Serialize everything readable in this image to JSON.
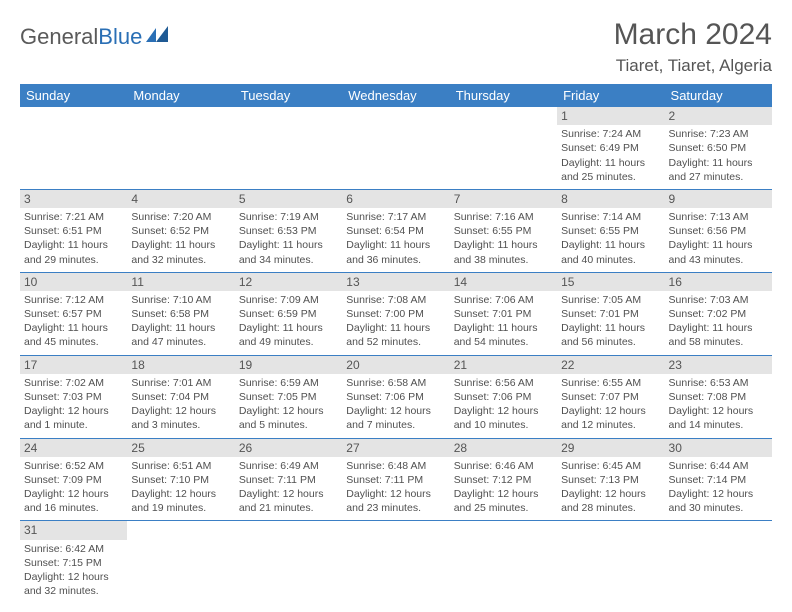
{
  "logo": {
    "text1": "General",
    "text2": "Blue"
  },
  "title": "March 2024",
  "location": "Tiaret, Tiaret, Algeria",
  "colors": {
    "header_bg": "#3b7fc4",
    "header_fg": "#ffffff",
    "daynum_bg": "#e4e4e4",
    "row_divider": "#3b7fc4",
    "text": "#505050",
    "logo_blue": "#2a6fb5"
  },
  "days": [
    "Sunday",
    "Monday",
    "Tuesday",
    "Wednesday",
    "Thursday",
    "Friday",
    "Saturday"
  ],
  "weeks": [
    [
      null,
      null,
      null,
      null,
      null,
      {
        "n": "1",
        "sr": "Sunrise: 7:24 AM",
        "ss": "Sunset: 6:49 PM",
        "dl1": "Daylight: 11 hours",
        "dl2": "and 25 minutes."
      },
      {
        "n": "2",
        "sr": "Sunrise: 7:23 AM",
        "ss": "Sunset: 6:50 PM",
        "dl1": "Daylight: 11 hours",
        "dl2": "and 27 minutes."
      }
    ],
    [
      {
        "n": "3",
        "sr": "Sunrise: 7:21 AM",
        "ss": "Sunset: 6:51 PM",
        "dl1": "Daylight: 11 hours",
        "dl2": "and 29 minutes."
      },
      {
        "n": "4",
        "sr": "Sunrise: 7:20 AM",
        "ss": "Sunset: 6:52 PM",
        "dl1": "Daylight: 11 hours",
        "dl2": "and 32 minutes."
      },
      {
        "n": "5",
        "sr": "Sunrise: 7:19 AM",
        "ss": "Sunset: 6:53 PM",
        "dl1": "Daylight: 11 hours",
        "dl2": "and 34 minutes."
      },
      {
        "n": "6",
        "sr": "Sunrise: 7:17 AM",
        "ss": "Sunset: 6:54 PM",
        "dl1": "Daylight: 11 hours",
        "dl2": "and 36 minutes."
      },
      {
        "n": "7",
        "sr": "Sunrise: 7:16 AM",
        "ss": "Sunset: 6:55 PM",
        "dl1": "Daylight: 11 hours",
        "dl2": "and 38 minutes."
      },
      {
        "n": "8",
        "sr": "Sunrise: 7:14 AM",
        "ss": "Sunset: 6:55 PM",
        "dl1": "Daylight: 11 hours",
        "dl2": "and 40 minutes."
      },
      {
        "n": "9",
        "sr": "Sunrise: 7:13 AM",
        "ss": "Sunset: 6:56 PM",
        "dl1": "Daylight: 11 hours",
        "dl2": "and 43 minutes."
      }
    ],
    [
      {
        "n": "10",
        "sr": "Sunrise: 7:12 AM",
        "ss": "Sunset: 6:57 PM",
        "dl1": "Daylight: 11 hours",
        "dl2": "and 45 minutes."
      },
      {
        "n": "11",
        "sr": "Sunrise: 7:10 AM",
        "ss": "Sunset: 6:58 PM",
        "dl1": "Daylight: 11 hours",
        "dl2": "and 47 minutes."
      },
      {
        "n": "12",
        "sr": "Sunrise: 7:09 AM",
        "ss": "Sunset: 6:59 PM",
        "dl1": "Daylight: 11 hours",
        "dl2": "and 49 minutes."
      },
      {
        "n": "13",
        "sr": "Sunrise: 7:08 AM",
        "ss": "Sunset: 7:00 PM",
        "dl1": "Daylight: 11 hours",
        "dl2": "and 52 minutes."
      },
      {
        "n": "14",
        "sr": "Sunrise: 7:06 AM",
        "ss": "Sunset: 7:01 PM",
        "dl1": "Daylight: 11 hours",
        "dl2": "and 54 minutes."
      },
      {
        "n": "15",
        "sr": "Sunrise: 7:05 AM",
        "ss": "Sunset: 7:01 PM",
        "dl1": "Daylight: 11 hours",
        "dl2": "and 56 minutes."
      },
      {
        "n": "16",
        "sr": "Sunrise: 7:03 AM",
        "ss": "Sunset: 7:02 PM",
        "dl1": "Daylight: 11 hours",
        "dl2": "and 58 minutes."
      }
    ],
    [
      {
        "n": "17",
        "sr": "Sunrise: 7:02 AM",
        "ss": "Sunset: 7:03 PM",
        "dl1": "Daylight: 12 hours",
        "dl2": "and 1 minute."
      },
      {
        "n": "18",
        "sr": "Sunrise: 7:01 AM",
        "ss": "Sunset: 7:04 PM",
        "dl1": "Daylight: 12 hours",
        "dl2": "and 3 minutes."
      },
      {
        "n": "19",
        "sr": "Sunrise: 6:59 AM",
        "ss": "Sunset: 7:05 PM",
        "dl1": "Daylight: 12 hours",
        "dl2": "and 5 minutes."
      },
      {
        "n": "20",
        "sr": "Sunrise: 6:58 AM",
        "ss": "Sunset: 7:06 PM",
        "dl1": "Daylight: 12 hours",
        "dl2": "and 7 minutes."
      },
      {
        "n": "21",
        "sr": "Sunrise: 6:56 AM",
        "ss": "Sunset: 7:06 PM",
        "dl1": "Daylight: 12 hours",
        "dl2": "and 10 minutes."
      },
      {
        "n": "22",
        "sr": "Sunrise: 6:55 AM",
        "ss": "Sunset: 7:07 PM",
        "dl1": "Daylight: 12 hours",
        "dl2": "and 12 minutes."
      },
      {
        "n": "23",
        "sr": "Sunrise: 6:53 AM",
        "ss": "Sunset: 7:08 PM",
        "dl1": "Daylight: 12 hours",
        "dl2": "and 14 minutes."
      }
    ],
    [
      {
        "n": "24",
        "sr": "Sunrise: 6:52 AM",
        "ss": "Sunset: 7:09 PM",
        "dl1": "Daylight: 12 hours",
        "dl2": "and 16 minutes."
      },
      {
        "n": "25",
        "sr": "Sunrise: 6:51 AM",
        "ss": "Sunset: 7:10 PM",
        "dl1": "Daylight: 12 hours",
        "dl2": "and 19 minutes."
      },
      {
        "n": "26",
        "sr": "Sunrise: 6:49 AM",
        "ss": "Sunset: 7:11 PM",
        "dl1": "Daylight: 12 hours",
        "dl2": "and 21 minutes."
      },
      {
        "n": "27",
        "sr": "Sunrise: 6:48 AM",
        "ss": "Sunset: 7:11 PM",
        "dl1": "Daylight: 12 hours",
        "dl2": "and 23 minutes."
      },
      {
        "n": "28",
        "sr": "Sunrise: 6:46 AM",
        "ss": "Sunset: 7:12 PM",
        "dl1": "Daylight: 12 hours",
        "dl2": "and 25 minutes."
      },
      {
        "n": "29",
        "sr": "Sunrise: 6:45 AM",
        "ss": "Sunset: 7:13 PM",
        "dl1": "Daylight: 12 hours",
        "dl2": "and 28 minutes."
      },
      {
        "n": "30",
        "sr": "Sunrise: 6:44 AM",
        "ss": "Sunset: 7:14 PM",
        "dl1": "Daylight: 12 hours",
        "dl2": "and 30 minutes."
      }
    ],
    [
      {
        "n": "31",
        "sr": "Sunrise: 6:42 AM",
        "ss": "Sunset: 7:15 PM",
        "dl1": "Daylight: 12 hours",
        "dl2": "and 32 minutes."
      },
      null,
      null,
      null,
      null,
      null,
      null
    ]
  ]
}
